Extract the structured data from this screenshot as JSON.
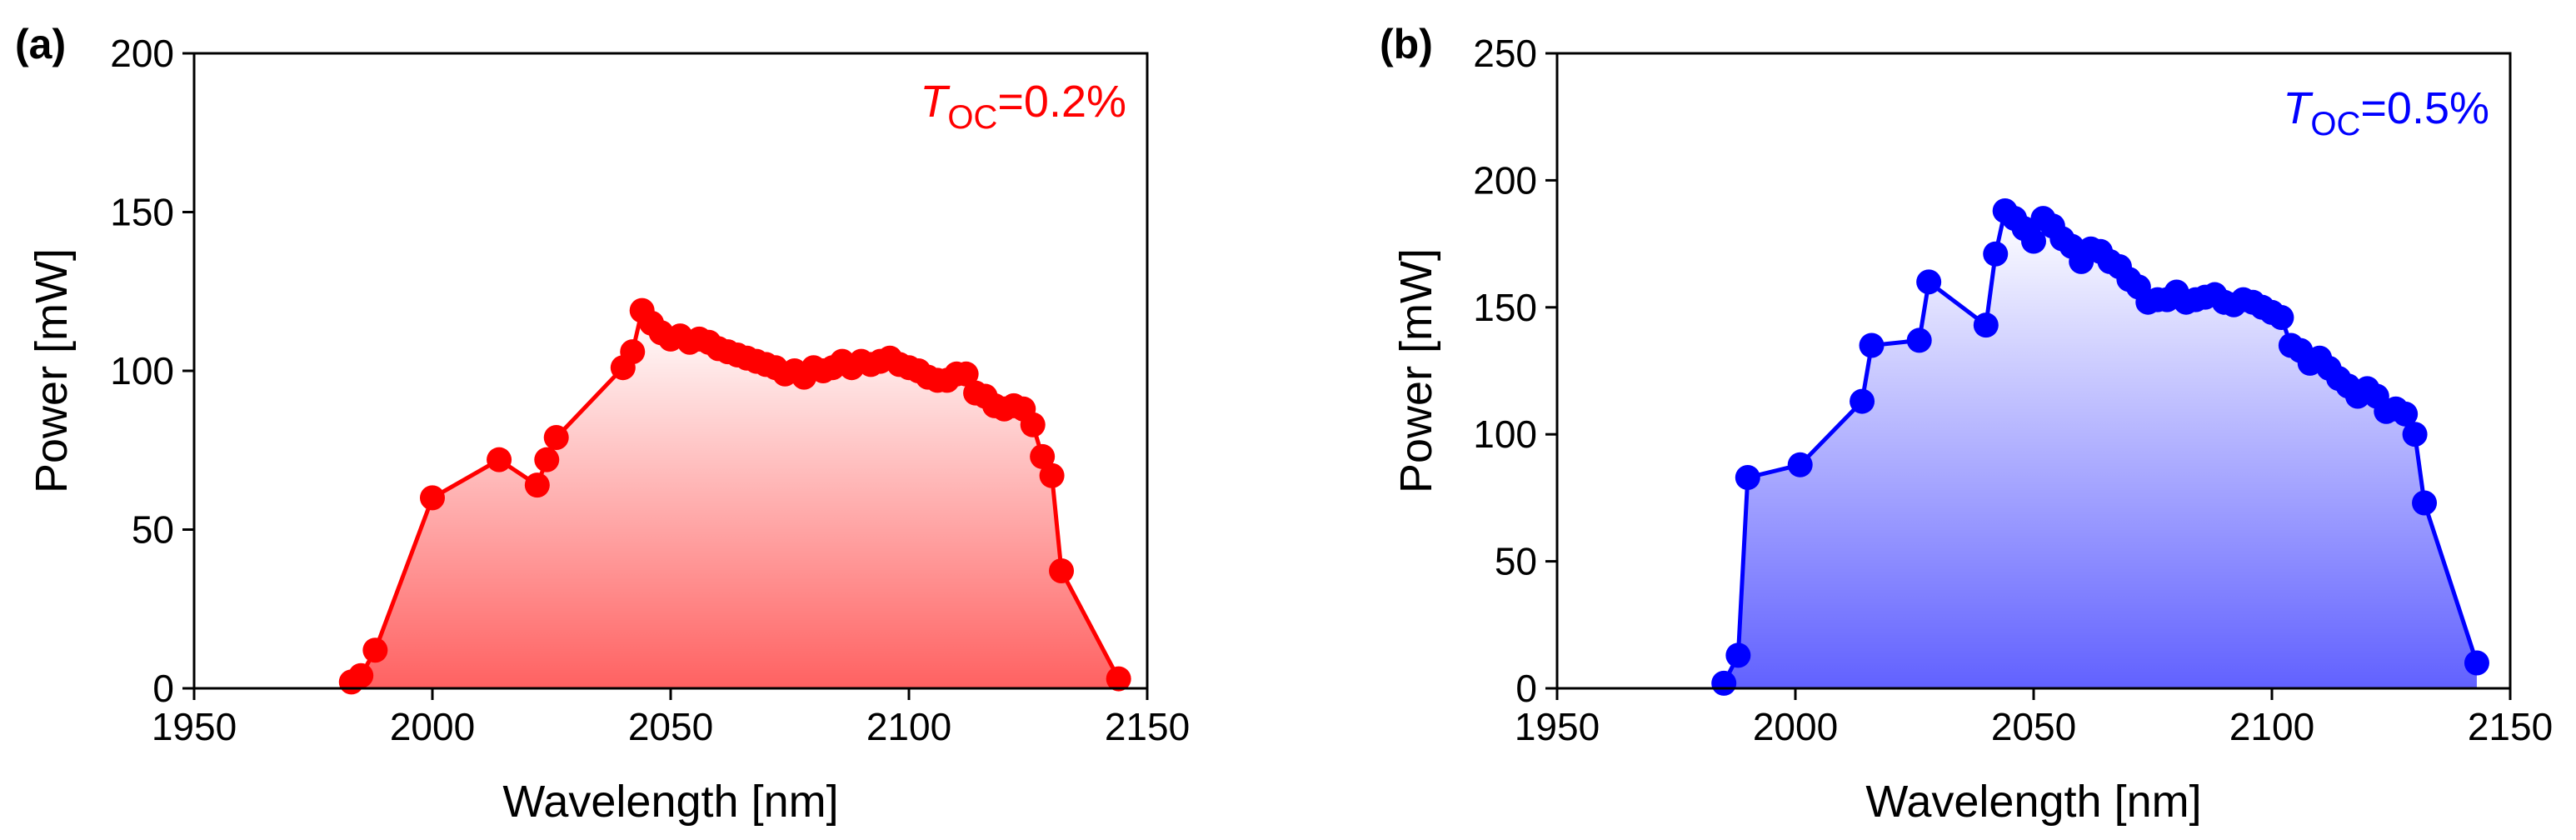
{
  "chart_data": [
    {
      "type": "line",
      "panel_label": "(a)",
      "xlabel": "Wavelength [nm]",
      "ylabel": "Power [mW]",
      "xlim": [
        1950,
        2150
      ],
      "ylim": [
        0,
        200
      ],
      "xticks": [
        "1950",
        "2000",
        "2050",
        "2100",
        "2150"
      ],
      "yticks": [
        "0",
        "50",
        "100",
        "150",
        "200"
      ],
      "color": "#ff0000",
      "fill": "red-gradient",
      "annotation": {
        "symbol": "T",
        "subscript": "OC",
        "text": "=0.2%",
        "placement": "top-right"
      },
      "series": [
        {
          "name": "T_OC=0.2%",
          "x": [
            1983,
            1985,
            1988,
            2000,
            2014,
            2022,
            2024,
            2026,
            2040,
            2042,
            2044,
            2046,
            2048,
            2050,
            2052,
            2054,
            2056,
            2058,
            2060,
            2062,
            2064,
            2066,
            2068,
            2070,
            2072,
            2074,
            2076,
            2078,
            2080,
            2082,
            2084,
            2086,
            2088,
            2090,
            2092,
            2094,
            2096,
            2098,
            2100,
            2102,
            2104,
            2106,
            2108,
            2110,
            2112,
            2114,
            2116,
            2118,
            2120,
            2122,
            2124,
            2126,
            2128,
            2130,
            2132,
            2144
          ],
          "y": [
            2,
            4,
            12,
            60,
            72,
            64,
            72,
            79,
            101,
            106,
            119,
            115,
            112,
            110,
            111,
            109,
            110,
            109,
            107,
            106,
            105,
            104,
            103,
            102,
            101,
            99,
            100,
            98,
            101,
            100,
            101,
            103,
            101,
            103,
            102,
            103,
            104,
            102,
            101,
            100,
            98,
            97,
            97,
            99,
            99,
            93,
            92,
            89,
            88,
            89,
            88,
            83,
            73,
            67,
            37,
            3
          ]
        }
      ]
    },
    {
      "type": "line",
      "panel_label": "(b)",
      "xlabel": "Wavelength [nm]",
      "ylabel": "Power [mW]",
      "xlim": [
        1950,
        2150
      ],
      "ylim": [
        0,
        250
      ],
      "xticks": [
        "1950",
        "2000",
        "2050",
        "2100",
        "2150"
      ],
      "yticks": [
        "0",
        "50",
        "100",
        "150",
        "200",
        "250"
      ],
      "color": "#0000ff",
      "fill": "blue-gradient",
      "annotation": {
        "symbol": "T",
        "subscript": "OC",
        "text": "=0.5%",
        "placement": "top-right"
      },
      "series": [
        {
          "name": "T_OC=0.5%",
          "x": [
            1985,
            1988,
            1990,
            2001,
            2014,
            2016,
            2026,
            2028,
            2040,
            2042,
            2044,
            2046,
            2048,
            2050,
            2052,
            2054,
            2056,
            2058,
            2060,
            2062,
            2064,
            2066,
            2068,
            2070,
            2072,
            2074,
            2076,
            2078,
            2080,
            2082,
            2084,
            2086,
            2088,
            2090,
            2092,
            2094,
            2096,
            2098,
            2100,
            2102,
            2104,
            2106,
            2108,
            2110,
            2112,
            2114,
            2116,
            2118,
            2120,
            2122,
            2124,
            2126,
            2128,
            2130,
            2132,
            2143
          ],
          "y": [
            2,
            13,
            83,
            88,
            113,
            135,
            137,
            160,
            143,
            171,
            188,
            185,
            181,
            176,
            185,
            182,
            177,
            174,
            168,
            173,
            172,
            168,
            166,
            161,
            158,
            152,
            153,
            153,
            156,
            152,
            153,
            154,
            155,
            152,
            151,
            153,
            152,
            150,
            148,
            146,
            135,
            133,
            128,
            130,
            126,
            122,
            119,
            115,
            118,
            115,
            109,
            110,
            108,
            100,
            73,
            10
          ]
        }
      ]
    }
  ]
}
